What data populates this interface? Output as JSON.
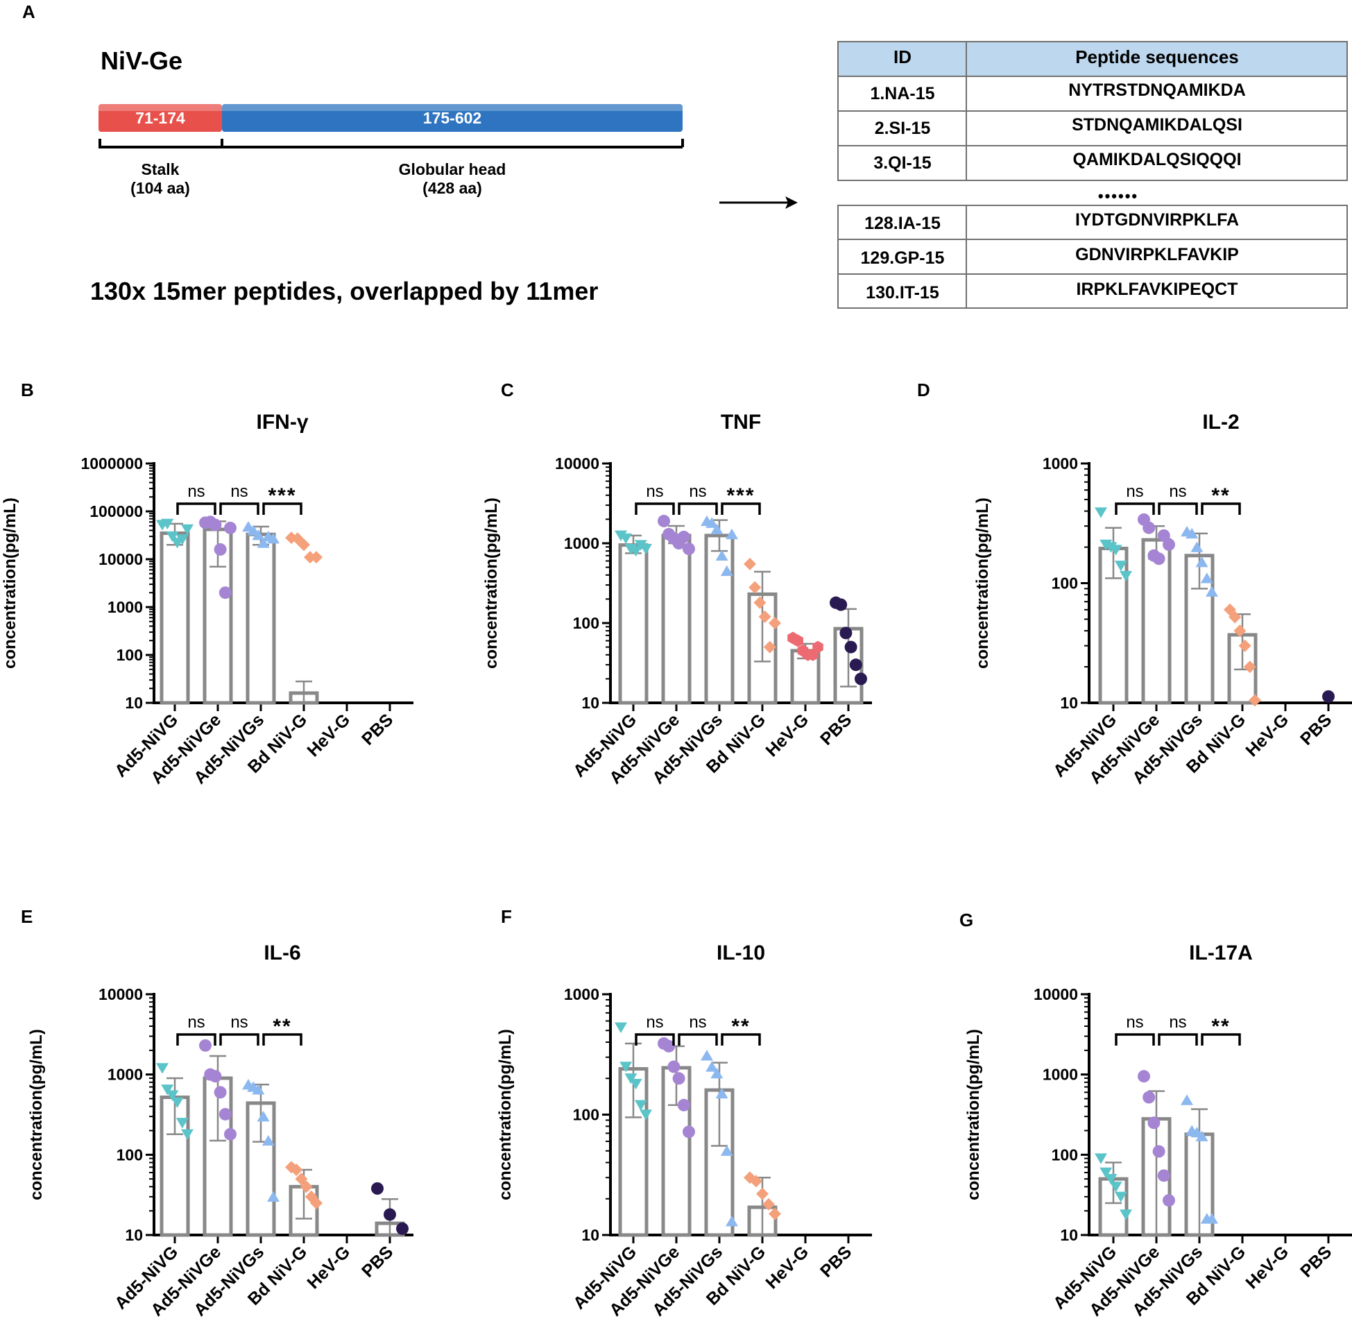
{
  "panel_a": {
    "letter": "A",
    "protein_name": "NiV-Ge",
    "segments": [
      {
        "label": "71-174",
        "color": "#e8504b"
      },
      {
        "label": "175-602",
        "color": "#2f74c0"
      }
    ],
    "domains": [
      {
        "name": "Stalk",
        "length": "(104 aa)"
      },
      {
        "name": "Globular head",
        "length": "(428 aa)"
      }
    ],
    "caption": "130x 15mer peptides, overlapped by 11mer",
    "table": {
      "headers": [
        "ID",
        "Peptide sequences"
      ],
      "rows_top": [
        [
          "1.NA-15",
          "NYTRSTDNQAMIKDA"
        ],
        [
          "2.SI-15",
          "STDNQAMIKDALQSI"
        ],
        [
          "3.QI-15",
          "QAMIKDALQSIQQQI"
        ]
      ],
      "ellipsis": "••••••",
      "rows_bottom": [
        [
          "128.IA-15",
          "IYDTGDNVIRPKLFA"
        ],
        [
          "129.GP-15",
          "GDNVIRPKLFAVKIP"
        ],
        [
          "130.IT-15",
          "IRPKLFAVKIPEQCT"
        ]
      ],
      "header_color": "#bdd7ee"
    }
  },
  "chart_data": [
    {
      "letter": "B",
      "type": "bar",
      "title": "IFN-γ",
      "ylabel": "concentration(pg/mL)",
      "yscale": "log",
      "ylim": [
        10,
        1000000
      ],
      "yticks": [
        "10",
        "100",
        "1000",
        "10000",
        "100000",
        "1000000"
      ],
      "categories": [
        "Ad5-NiVG",
        "Ad5-NiVGe",
        "Ad5-NiVGs",
        "Bd NiV-G",
        "HeV-G",
        "PBS"
      ],
      "means": [
        35000,
        42000,
        33000,
        16,
        null,
        null
      ],
      "sd_upper": [
        55000,
        62000,
        48000,
        28,
        null,
        null
      ],
      "sd_lower": [
        20000,
        7000,
        20000,
        10,
        null,
        null
      ],
      "points": [
        [
          52000,
          55000,
          30000,
          22000,
          26000,
          42000
        ],
        [
          58000,
          60000,
          52000,
          16000,
          2000,
          45000
        ],
        [
          48000,
          40000,
          32000,
          22000,
          30000,
          27000
        ],
        [
          28000,
          27000,
          20000,
          11000,
          11000
        ],
        [],
        []
      ],
      "significance": [
        {
          "from": 0,
          "to": 1,
          "label": "ns"
        },
        {
          "from": 1,
          "to": 2,
          "label": "ns"
        },
        {
          "from": 2,
          "to": 3,
          "label": "***"
        }
      ]
    },
    {
      "letter": "C",
      "type": "bar",
      "title": "TNF",
      "ylabel": "concentration(pg/mL)",
      "yscale": "log",
      "ylim": [
        10,
        10000
      ],
      "yticks": [
        "10",
        "100",
        "1000",
        "10000"
      ],
      "categories": [
        "Ad5-NiVG",
        "Ad5-NiVGe",
        "Ad5-NiVGs",
        "Bd NiV-G",
        "HeV-G",
        "PBS"
      ],
      "means": [
        950,
        1250,
        1250,
        230,
        45,
        85
      ],
      "sd_upper": [
        1250,
        1650,
        1950,
        440,
        55,
        150
      ],
      "sd_lower": [
        750,
        1000,
        800,
        33,
        36,
        16
      ],
      "points": [
        [
          1250,
          1150,
          850,
          800,
          950,
          850
        ],
        [
          1900,
          1300,
          1150,
          1000,
          1200,
          850
        ],
        [
          1900,
          1800,
          1500,
          700,
          450,
          1300
        ],
        [
          550,
          280,
          180,
          120,
          50,
          100
        ],
        [
          65,
          60,
          45,
          40,
          40,
          50
        ],
        [
          180,
          170,
          75,
          50,
          30,
          20
        ]
      ],
      "significance": [
        {
          "from": 0,
          "to": 1,
          "label": "ns"
        },
        {
          "from": 1,
          "to": 2,
          "label": "ns"
        },
        {
          "from": 2,
          "to": 3,
          "label": "***"
        }
      ]
    },
    {
      "letter": "D",
      "type": "bar",
      "title": "IL-2",
      "ylabel": "concentration(pg/mL)",
      "yscale": "log",
      "ylim": [
        10,
        1000
      ],
      "yticks": [
        "10",
        "100",
        "1000"
      ],
      "categories": [
        "Ad5-NiVG",
        "Ad5-NiVGe",
        "Ad5-NiVGs",
        "Bd NiV-G",
        "HeV-G",
        "PBS"
      ],
      "means": [
        195,
        230,
        170,
        37,
        null,
        null
      ],
      "sd_upper": [
        290,
        300,
        260,
        55,
        null,
        null
      ],
      "sd_lower": [
        110,
        160,
        90,
        19,
        null,
        null
      ],
      "points": [
        [
          390,
          210,
          200,
          190,
          140,
          115
        ],
        [
          340,
          290,
          170,
          160,
          250,
          210
        ],
        [
          270,
          260,
          200,
          150,
          110,
          85
        ],
        [
          60,
          52,
          40,
          30,
          20,
          10.5
        ],
        [],
        [
          11.3
        ]
      ],
      "significance": [
        {
          "from": 0,
          "to": 1,
          "label": "ns"
        },
        {
          "from": 1,
          "to": 2,
          "label": "ns"
        },
        {
          "from": 2,
          "to": 3,
          "label": "**"
        }
      ]
    },
    {
      "letter": "E",
      "type": "bar",
      "title": "IL-6",
      "ylabel": "concentration(pg/mL)",
      "yscale": "log",
      "ylim": [
        10,
        10000
      ],
      "yticks": [
        "10",
        "100",
        "1000",
        "10000"
      ],
      "categories": [
        "Ad5-NiVG",
        "Ad5-NiVGe",
        "Ad5-NiVGs",
        "Bd NiV-G",
        "HeV-G",
        "PBS"
      ],
      "means": [
        520,
        900,
        440,
        40,
        null,
        14
      ],
      "sd_upper": [
        900,
        1700,
        750,
        65,
        null,
        28
      ],
      "sd_lower": [
        180,
        150,
        145,
        16,
        null,
        10
      ],
      "points": [
        [
          1200,
          650,
          550,
          450,
          250,
          180
        ],
        [
          2300,
          1000,
          950,
          600,
          320,
          180
        ],
        [
          750,
          700,
          650,
          300,
          150,
          30
        ],
        [
          70,
          65,
          50,
          40,
          30,
          25
        ],
        [],
        [
          38,
          18,
          12
        ]
      ],
      "significance": [
        {
          "from": 0,
          "to": 1,
          "label": "ns"
        },
        {
          "from": 1,
          "to": 2,
          "label": "ns"
        },
        {
          "from": 2,
          "to": 3,
          "label": "**"
        }
      ]
    },
    {
      "letter": "F",
      "type": "bar",
      "title": "IL-10",
      "ylabel": "concentration(pg/mL)",
      "yscale": "log",
      "ylim": [
        10,
        1000
      ],
      "yticks": [
        "10",
        "100",
        "1000"
      ],
      "categories": [
        "Ad5-NiVG",
        "Ad5-NiVGe",
        "Ad5-NiVGs",
        "Bd NiV-G",
        "HeV-G",
        "PBS"
      ],
      "means": [
        240,
        245,
        160,
        17,
        null,
        null
      ],
      "sd_upper": [
        390,
        370,
        270,
        30,
        null,
        null
      ],
      "sd_lower": [
        95,
        120,
        55,
        10,
        null,
        null
      ],
      "points": [
        [
          530,
          250,
          200,
          180,
          120,
          100
        ],
        [
          390,
          370,
          250,
          200,
          120,
          72
        ],
        [
          310,
          250,
          220,
          150,
          50,
          13
        ],
        [
          30,
          28,
          22,
          18,
          15
        ],
        [],
        []
      ],
      "significance": [
        {
          "from": 0,
          "to": 1,
          "label": "ns"
        },
        {
          "from": 1,
          "to": 2,
          "label": "ns"
        },
        {
          "from": 2,
          "to": 3,
          "label": "**"
        }
      ]
    },
    {
      "letter": "G",
      "type": "bar",
      "title": "IL-17A",
      "ylabel": "concentration(pg/mL)",
      "yscale": "log",
      "ylim": [
        10,
        10000
      ],
      "yticks": [
        "10",
        "100",
        "1000",
        "10000"
      ],
      "categories": [
        "Ad5-NiVG",
        "Ad5-NiVGe",
        "Ad5-NiVGs",
        "Bd NiV-G",
        "HeV-G",
        "PBS"
      ],
      "means": [
        50,
        280,
        180,
        null,
        null,
        null
      ],
      "sd_upper": [
        80,
        620,
        370,
        null,
        null,
        null
      ],
      "sd_lower": [
        25,
        10,
        10,
        null,
        null,
        null
      ],
      "points": [
        [
          90,
          60,
          50,
          40,
          30,
          18
        ],
        [
          950,
          520,
          250,
          110,
          55,
          27
        ],
        [
          480,
          200,
          190,
          170,
          16,
          16
        ],
        [],
        [],
        []
      ],
      "significance": [
        {
          "from": 0,
          "to": 1,
          "label": "ns"
        },
        {
          "from": 1,
          "to": 2,
          "label": "ns"
        },
        {
          "from": 2,
          "to": 3,
          "label": "**"
        }
      ]
    }
  ],
  "groups": [
    {
      "name": "Ad5-NiVG",
      "color": "#5bc4c9",
      "marker": "triangle-down"
    },
    {
      "name": "Ad5-NiVGe",
      "color": "#a585d3",
      "marker": "circle"
    },
    {
      "name": "Ad5-NiVGs",
      "color": "#8cb8f0",
      "marker": "triangle-up"
    },
    {
      "name": "Bd NiV-G",
      "color": "#f4a07a",
      "marker": "diamond"
    },
    {
      "name": "HeV-G",
      "color": "#ee6a72",
      "marker": "hexagon"
    },
    {
      "name": "PBS",
      "color": "#2a1a52",
      "marker": "circle"
    }
  ]
}
